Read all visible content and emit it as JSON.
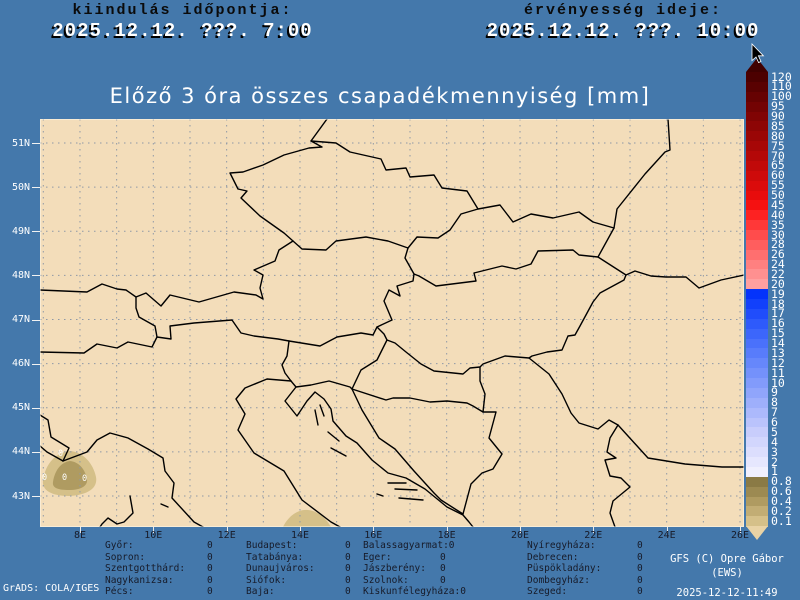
{
  "header": {
    "init_label": "kiindulás időpontja:",
    "init_value": "2025.12.12. ???. 7:00",
    "valid_label": "érvényesség ideje:",
    "valid_value": "2025.12.12. ???. 10:00"
  },
  "title": "Előző 3 óra összes csapadékmennyiség [mm]",
  "map": {
    "lat_labels": [
      "51N",
      "50N",
      "49N",
      "48N",
      "47N",
      "46N",
      "45N",
      "44N",
      "43N"
    ],
    "lon_labels": [
      "8E",
      "10E",
      "12E",
      "14E",
      "16E",
      "18E",
      "20E",
      "22E",
      "24E",
      "26E"
    ],
    "contour_labels": [
      "0",
      "0",
      "0",
      "0"
    ]
  },
  "colorbar": {
    "labels": [
      "120",
      "110",
      "100",
      "95",
      "90",
      "85",
      "80",
      "75",
      "70",
      "65",
      "60",
      "55",
      "50",
      "45",
      "40",
      "35",
      "30",
      "28",
      "26",
      "24",
      "22",
      "20",
      "19",
      "18",
      "17",
      "16",
      "15",
      "14",
      "13",
      "12",
      "11",
      "10",
      "9",
      "8",
      "7",
      "6",
      "5",
      "4",
      "3",
      "2",
      "1",
      "0.8",
      "0.6",
      "0.4",
      "0.2",
      "0.1"
    ],
    "colors": [
      "#4c0000",
      "#590101",
      "#660202",
      "#730303",
      "#800404",
      "#8d0505",
      "#9a0606",
      "#a70707",
      "#b40808",
      "#c10909",
      "#ce0a0a",
      "#db0b0b",
      "#e80c0c",
      "#f51111",
      "#fd2222",
      "#ff3838",
      "#ff4c4c",
      "#ff5e5e",
      "#ff6f6f",
      "#ff8080",
      "#ff9090",
      "#ffa0a0",
      "#0433fb",
      "#1240fb",
      "#204dfb",
      "#2e5afb",
      "#3c66fb",
      "#4a71fb",
      "#587cfb",
      "#6687fb",
      "#7491fb",
      "#829bfb",
      "#90a5fb",
      "#9eaffb",
      "#acb9fc",
      "#bac3fc",
      "#c8cdfc",
      "#d2d6fd",
      "#dcdefd",
      "#e6e7fe",
      "#f0f0fe",
      "#8a7a45",
      "#9c8a52",
      "#af9b61",
      "#c2ad74",
      "#d5c089"
    ],
    "top_arrow_color": "#400000",
    "bottom_arrow_color": "#e9d3a5"
  },
  "stations": {
    "columns": [
      [
        {
          "name": "Győr:",
          "value": "0"
        },
        {
          "name": "Sopron:",
          "value": "0"
        },
        {
          "name": "Szentgotthárd:",
          "value": "0"
        },
        {
          "name": "Nagykanizsa:",
          "value": "0"
        },
        {
          "name": "Pécs:",
          "value": "0"
        }
      ],
      [
        {
          "name": "Budapest:",
          "value": "0"
        },
        {
          "name": "Tatabánya:",
          "value": "0"
        },
        {
          "name": "Dunaujváros:",
          "value": "0"
        },
        {
          "name": "Siófok:",
          "value": "0"
        },
        {
          "name": "Baja:",
          "value": "0"
        }
      ],
      [
        {
          "name": "Balassagyarmat:",
          "value": "0"
        },
        {
          "name": "Eger:",
          "value": "0"
        },
        {
          "name": "Jászberény:",
          "value": "0"
        },
        {
          "name": "Szolnok:",
          "value": "0"
        },
        {
          "name": "Kiskunfélegyháza:",
          "value": "0"
        }
      ],
      [
        {
          "name": "Nyíregyháza:",
          "value": "0"
        },
        {
          "name": "Debrecen:",
          "value": "0"
        },
        {
          "name": "Püspökladány:",
          "value": "0"
        },
        {
          "name": "Dombegyház:",
          "value": "0"
        },
        {
          "name": "Szeged:",
          "value": "0"
        }
      ]
    ]
  },
  "footer": {
    "grads": "GrADS: COLA/IGES",
    "credit_line1": "GFS (C) Opre Gábor",
    "credit_line2": "(EWS)",
    "timestamp": "2025-12-12-11:49"
  },
  "colors": {
    "bg": "#4478ab",
    "land": "#f3ddba",
    "grid": "#8e98a6",
    "border": "#000000",
    "lat_text": "#ffffff",
    "lon_text": "#171b29",
    "station_text": "#171b29",
    "header_label": "#0b0b0b",
    "header_value": "#ffffff",
    "title": "#ffffff",
    "footer": "#ffffff"
  }
}
